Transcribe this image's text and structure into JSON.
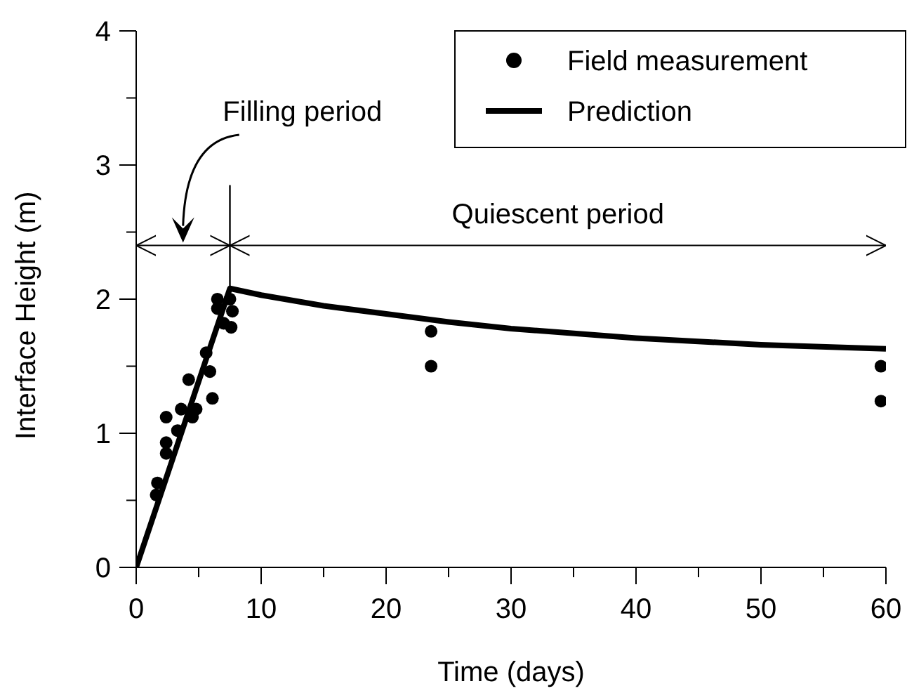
{
  "chart_data": {
    "type": "scatter",
    "xlabel": "Time (days)",
    "ylabel": "Interface Height (m)",
    "xlim": [
      0,
      60
    ],
    "ylim": [
      0,
      4
    ],
    "xticks": [
      0,
      {
        "value": 5,
        "label": null
      },
      10,
      {
        "value": 15,
        "label": null
      },
      20,
      {
        "value": 25,
        "label": null
      },
      30,
      {
        "value": 35,
        "label": null
      },
      40,
      {
        "value": 45,
        "label": null
      },
      50,
      {
        "value": 55,
        "label": null
      },
      60
    ],
    "yticks": [
      0,
      {
        "value": 0.5,
        "label": null
      },
      1,
      {
        "value": 1.5,
        "label": null
      },
      2,
      {
        "value": 2.5,
        "label": null
      },
      3,
      {
        "value": 3.5,
        "label": null
      },
      4
    ],
    "grid": false,
    "legend": "top right",
    "annotations": [
      "Filling period",
      "Quiescent period"
    ],
    "ref_lines": [
      {
        "axis": "y",
        "value": 2.4,
        "color": "#000000",
        "line_style": "solid"
      }
    ],
    "series": [
      {
        "name": "Field measurement",
        "type": "scatter",
        "color": "#000000",
        "marker": "circle",
        "x": [
          1.6,
          1.7,
          2.4,
          2.4,
          2.4,
          3.3,
          3.6,
          4.2,
          4.5,
          4.8,
          5.6,
          5.9,
          6.1,
          6.5,
          6.5,
          7.0,
          7.5,
          7.7,
          7.6,
          23.6,
          23.6,
          59.6,
          59.6
        ],
        "values": [
          0.54,
          0.63,
          0.85,
          0.93,
          1.12,
          1.02,
          1.18,
          1.4,
          1.12,
          1.18,
          1.6,
          1.46,
          1.26,
          2.0,
          1.93,
          1.82,
          2.0,
          1.91,
          1.79,
          1.76,
          1.5,
          1.5,
          1.24
        ]
      },
      {
        "name": "Prediction",
        "type": "line",
        "color": "#000000",
        "marker": "none",
        "line_style": "solid",
        "x": [
          0,
          7.5,
          10,
          15,
          20,
          25,
          30,
          40,
          50,
          60
        ],
        "values": [
          0,
          2.08,
          2.03,
          1.95,
          1.89,
          1.83,
          1.78,
          1.71,
          1.66,
          1.63
        ]
      }
    ]
  }
}
